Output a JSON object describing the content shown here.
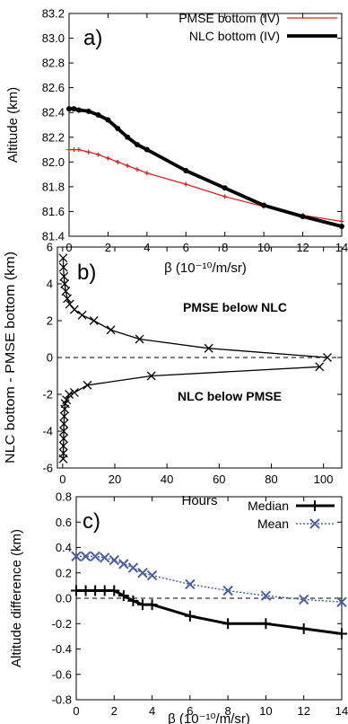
{
  "chart_data": [
    {
      "type": "line",
      "panel_label": "a)",
      "xlabel": "β (10⁻¹⁰/m/sr)",
      "ylabel": "Altitude (km)",
      "xlim": [
        0,
        14
      ],
      "ylim": [
        81.4,
        83.2
      ],
      "xticks": [
        0,
        2,
        4,
        6,
        8,
        10,
        12,
        14
      ],
      "yticks": [
        81.4,
        81.6,
        81.8,
        82.0,
        82.2,
        82.4,
        82.6,
        82.8,
        83.0,
        83.2
      ],
      "ytick_labels": [
        "81.4",
        "81.6",
        "81.8",
        "82.0",
        "82.2",
        "82.4",
        "82.6",
        "82.8",
        "83.0",
        "83.2"
      ],
      "legend_position": "top-right",
      "series": [
        {
          "name": "PMSE bottom (IV)",
          "color": "#e02020",
          "x": [
            0,
            0.25,
            0.5,
            1,
            1.5,
            2,
            2.5,
            3,
            3.5,
            4,
            6,
            8,
            10,
            12,
            14
          ],
          "y": [
            82.1,
            82.1,
            82.1,
            82.08,
            82.06,
            82.03,
            82.0,
            81.97,
            81.94,
            81.91,
            81.82,
            81.72,
            81.64,
            81.57,
            81.52
          ]
        },
        {
          "name": "NLC bottom (IV)",
          "color": "#000000",
          "x": [
            0,
            0.25,
            0.5,
            1,
            1.5,
            2,
            2.5,
            3,
            3.5,
            4,
            6,
            8,
            10,
            12,
            14
          ],
          "y": [
            82.43,
            82.43,
            82.42,
            82.41,
            82.38,
            82.34,
            82.27,
            82.2,
            82.14,
            82.1,
            81.93,
            81.79,
            81.65,
            81.56,
            81.48
          ]
        }
      ]
    },
    {
      "type": "line",
      "panel_label": "b)",
      "xlabel": "Hours",
      "ylabel": "NLC bottom - PMSE bottom (km)",
      "xlim": [
        -2,
        107
      ],
      "ylim": [
        -6,
        6
      ],
      "xticks": [
        0,
        20,
        40,
        60,
        80,
        100
      ],
      "yticks": [
        -6,
        -4,
        -2,
        0,
        2,
        4,
        6
      ],
      "reference_line": 0,
      "annotations": [
        "PMSE below NLC",
        "NLC below PMSE"
      ],
      "series": [
        {
          "color": "#000000",
          "x": [
            0.2,
            0.3,
            0.5,
            0.8,
            1.2,
            1.8,
            2.7,
            4.5,
            7.5,
            12,
            18.5,
            29.5,
            56,
            101.5
          ],
          "y": [
            5.4,
            4.9,
            4.4,
            4.0,
            3.6,
            3.2,
            2.9,
            2.6,
            2.3,
            2.0,
            1.5,
            1.0,
            0.5,
            0.0
          ]
        },
        {
          "color": "#000000",
          "x": [
            0.2,
            0.3,
            0.3,
            0.4,
            0.4,
            0.5,
            0.6,
            0.8,
            1.0,
            1.5,
            2.5,
            4.5,
            9.5,
            34,
            98.5
          ],
          "y": [
            -5.5,
            -5.2,
            -4.8,
            -4.4,
            -4.0,
            -3.6,
            -3.2,
            -2.8,
            -2.5,
            -2.3,
            -2.0,
            -1.9,
            -1.5,
            -1.0,
            -0.5
          ]
        }
      ]
    },
    {
      "type": "line",
      "panel_label": "c)",
      "xlabel": "β (10⁻¹⁰/m/sr)",
      "ylabel": "Altitude difference (km)",
      "xlim": [
        0,
        14
      ],
      "ylim": [
        -0.8,
        0.8
      ],
      "xticks": [
        0,
        2,
        4,
        6,
        8,
        10,
        12,
        14
      ],
      "yticks": [
        -0.8,
        -0.6,
        -0.4,
        -0.2,
        0.0,
        0.2,
        0.4,
        0.6,
        0.8
      ],
      "ytick_labels": [
        "-0.8",
        "-0.6",
        "-0.4",
        "-0.2",
        "0.0",
        "0.2",
        "0.4",
        "0.6",
        "0.8"
      ],
      "reference_line": 0,
      "legend_position": "top-right",
      "series": [
        {
          "name": "Median",
          "color": "#000000",
          "x": [
            0,
            0.5,
            1,
            1.5,
            2,
            2.5,
            3,
            3.5,
            4,
            6,
            8,
            10,
            12,
            14
          ],
          "y": [
            0.06,
            0.06,
            0.06,
            0.06,
            0.06,
            0.02,
            -0.02,
            -0.05,
            -0.05,
            -0.14,
            -0.2,
            -0.2,
            -0.24,
            -0.28
          ]
        },
        {
          "name": "Mean",
          "color": "#4a5fa8",
          "x": [
            0,
            0.5,
            1,
            1.5,
            2,
            2.5,
            3,
            3.5,
            4,
            6,
            8,
            10,
            12,
            14
          ],
          "y": [
            0.33,
            0.33,
            0.33,
            0.32,
            0.3,
            0.27,
            0.24,
            0.2,
            0.18,
            0.11,
            0.06,
            0.02,
            -0.01,
            -0.03
          ]
        }
      ]
    }
  ]
}
